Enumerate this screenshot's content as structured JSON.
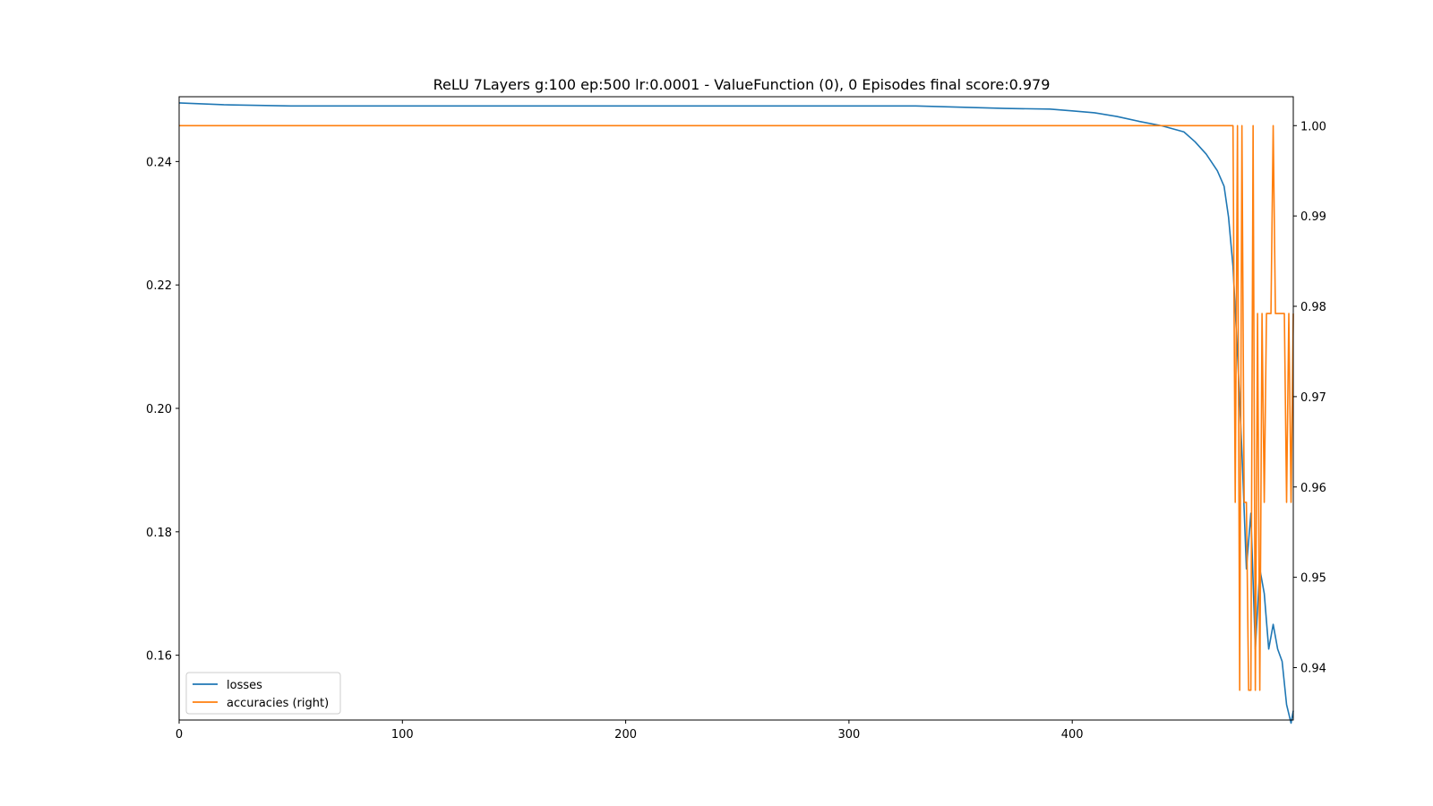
{
  "chart_data": {
    "type": "line",
    "title": "ReLU 7Layers g:100 ep:500 lr:0.0001 - ValueFunction (0), 0 Episodes  final score:0.979",
    "xlabel": "",
    "ylabel": "",
    "y2label": "",
    "xlim": [
      0,
      499
    ],
    "ylim": [
      0.1495,
      0.2505
    ],
    "y2lim": [
      0.9342,
      1.0032
    ],
    "x_ticks": [
      0,
      100,
      200,
      300,
      400
    ],
    "y_ticks": [
      0.16,
      0.18,
      0.2,
      0.22,
      0.24
    ],
    "y2_ticks": [
      0.94,
      0.95,
      0.96,
      0.97,
      0.98,
      0.99,
      1.0
    ],
    "x_tick_labels": [
      "0",
      "100",
      "200",
      "300",
      "400"
    ],
    "y_tick_labels": [
      "0.16",
      "0.18",
      "0.20",
      "0.22",
      "0.24"
    ],
    "y2_tick_labels": [
      "0.94",
      "0.95",
      "0.96",
      "0.97",
      "0.98",
      "0.99",
      "1.00"
    ],
    "grid": false,
    "legend_position": "lower-left",
    "series": [
      {
        "name": "losses",
        "axis": "left",
        "color": "#1f77b4",
        "x": [
          0,
          20,
          50,
          100,
          150,
          200,
          250,
          300,
          330,
          350,
          370,
          390,
          400,
          410,
          420,
          430,
          440,
          450,
          455,
          460,
          465,
          468,
          470,
          472,
          474,
          476,
          478,
          480,
          482,
          484,
          486,
          488,
          490,
          492,
          494,
          496,
          498,
          499
        ],
        "values": [
          0.2495,
          0.2492,
          0.249,
          0.249,
          0.249,
          0.249,
          0.249,
          0.249,
          0.249,
          0.2488,
          0.2486,
          0.2485,
          0.2482,
          0.2479,
          0.2473,
          0.2465,
          0.2458,
          0.2448,
          0.2432,
          0.2412,
          0.2385,
          0.236,
          0.231,
          0.223,
          0.209,
          0.193,
          0.174,
          0.183,
          0.161,
          0.174,
          0.17,
          0.161,
          0.165,
          0.161,
          0.159,
          0.152,
          0.149,
          0.151
        ]
      },
      {
        "name": "accuracies (right)",
        "axis": "right",
        "color": "#ff7f0e",
        "x": [
          0,
          472,
          473,
          474,
          475,
          476,
          477,
          478,
          479,
          480,
          481,
          482,
          483,
          484,
          485,
          486,
          487,
          488,
          489,
          490,
          491,
          492,
          493,
          494,
          495,
          496,
          497,
          498,
          499
        ],
        "values": [
          1.0,
          1.0,
          0.9583,
          1.0,
          0.9375,
          1.0,
          0.9583,
          0.9583,
          0.9375,
          0.9375,
          1.0,
          0.9375,
          0.9792,
          0.9375,
          0.9792,
          0.9583,
          0.9792,
          0.9792,
          0.9792,
          1.0,
          0.9792,
          0.9792,
          0.9792,
          0.9792,
          0.9792,
          0.9583,
          0.9792,
          0.9583,
          0.9792
        ]
      }
    ]
  }
}
